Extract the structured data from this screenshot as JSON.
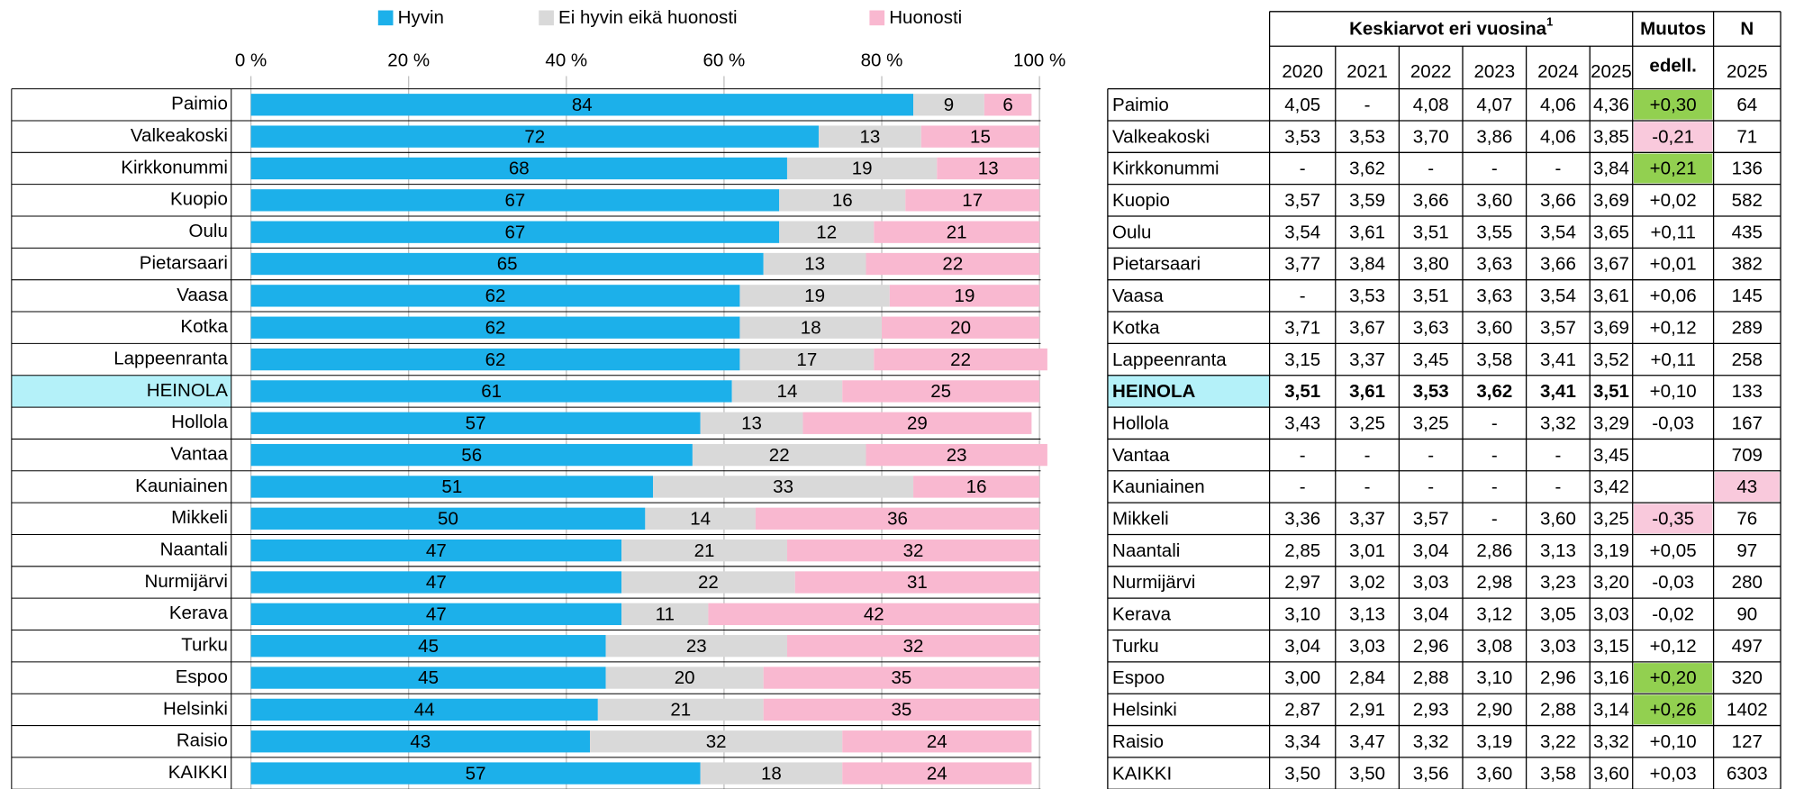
{
  "chart_data": {
    "type": "bar",
    "orientation": "horizontal",
    "stacked": true,
    "categories": [
      "Paimio",
      "Valkeakoski",
      "Kirkkonummi",
      "Kuopio",
      "Oulu",
      "Pietarsaari",
      "Vaasa",
      "Kotka",
      "Lappeenranta",
      "HEINOLA",
      "Hollola",
      "Vantaa",
      "Kauniainen",
      "Mikkeli",
      "Naantali",
      "Nurmijärvi",
      "Kerava",
      "Turku",
      "Espoo",
      "Helsinki",
      "Raisio",
      "KAIKKI"
    ],
    "series": [
      {
        "name": "Hyvin",
        "color": "#1cb0ea",
        "values": [
          84,
          72,
          68,
          67,
          67,
          65,
          62,
          62,
          62,
          61,
          57,
          56,
          51,
          50,
          47,
          47,
          47,
          45,
          45,
          44,
          43,
          57
        ]
      },
      {
        "name": "Ei hyvin eikä huonosti",
        "color": "#d9d9d9",
        "values": [
          9,
          13,
          19,
          16,
          12,
          13,
          19,
          18,
          17,
          14,
          13,
          22,
          33,
          14,
          21,
          22,
          11,
          23,
          20,
          21,
          32,
          18
        ]
      },
      {
        "name": "Huonosti",
        "color": "#f9b8d0",
        "values": [
          6,
          15,
          13,
          17,
          21,
          22,
          19,
          20,
          22,
          25,
          29,
          23,
          16,
          36,
          32,
          31,
          42,
          32,
          35,
          35,
          24,
          24
        ]
      }
    ],
    "xlim": [
      0,
      100
    ],
    "xticks": [
      {
        "value": 0,
        "label": "0 %"
      },
      {
        "value": 20,
        "label": "20 %"
      },
      {
        "value": 40,
        "label": "40 %"
      },
      {
        "value": 60,
        "label": "60 %"
      },
      {
        "value": 80,
        "label": "80 %"
      },
      {
        "value": 100,
        "label": "100 %"
      }
    ],
    "grid": true,
    "legend": "top",
    "highlight": 9,
    "highlight_color": "#b4f1f9"
  },
  "table": {
    "header": {
      "group": "Keskiarvot eri vuosina",
      "footnote": "1",
      "change": "Muutos",
      "change_sub": "edell.",
      "n": "N",
      "n_sub": "2025",
      "years": [
        "2020",
        "2021",
        "2022",
        "2023",
        "2024",
        "2025"
      ]
    },
    "rows": [
      {
        "cells": [
          "Paimio",
          "4,05",
          "-",
          "4,08",
          "4,07",
          "4,06",
          "4,36",
          "+0,30",
          "64"
        ],
        "change_fill": "#92d050"
      },
      {
        "cells": [
          "Valkeakoski",
          "3,53",
          "3,53",
          "3,70",
          "3,86",
          "4,06",
          "3,85",
          "-0,21",
          "71"
        ],
        "change_fill": "#f9c9dc"
      },
      {
        "cells": [
          "Kirkkonummi",
          "-",
          "3,62",
          "-",
          "-",
          "-",
          "3,84",
          "+0,21",
          "136"
        ],
        "change_fill": "#92d050"
      },
      {
        "cells": [
          "Kuopio",
          "3,57",
          "3,59",
          "3,66",
          "3,60",
          "3,66",
          "3,69",
          "+0,02",
          "582"
        ]
      },
      {
        "cells": [
          "Oulu",
          "3,54",
          "3,61",
          "3,51",
          "3,55",
          "3,54",
          "3,65",
          "+0,11",
          "435"
        ]
      },
      {
        "cells": [
          "Pietarsaari",
          "3,77",
          "3,84",
          "3,80",
          "3,63",
          "3,66",
          "3,67",
          "+0,01",
          "382"
        ]
      },
      {
        "cells": [
          "Vaasa",
          "-",
          "3,53",
          "3,51",
          "3,63",
          "3,54",
          "3,61",
          "+0,06",
          "145"
        ]
      },
      {
        "cells": [
          "Kotka",
          "3,71",
          "3,67",
          "3,63",
          "3,60",
          "3,57",
          "3,69",
          "+0,12",
          "289"
        ]
      },
      {
        "cells": [
          "Lappeenranta",
          "3,15",
          "3,37",
          "3,45",
          "3,58",
          "3,41",
          "3,52",
          "+0,11",
          "258"
        ]
      },
      {
        "cells": [
          "HEINOLA",
          "3,51",
          "3,61",
          "3,53",
          "3,62",
          "3,41",
          "3,51",
          "+0,10",
          "133"
        ],
        "bold": true
      },
      {
        "cells": [
          "Hollola",
          "3,43",
          "3,25",
          "3,25",
          "-",
          "3,32",
          "3,29",
          "-0,03",
          "167"
        ]
      },
      {
        "cells": [
          "Vantaa",
          "-",
          "-",
          "-",
          "-",
          "-",
          "3,45",
          null,
          "709"
        ]
      },
      {
        "cells": [
          "Kauniainen",
          "-",
          "-",
          "-",
          "-",
          "-",
          "3,42",
          null,
          "43"
        ],
        "n_fill": "#f9c9dc",
        "n_color": "#e0202a"
      },
      {
        "cells": [
          "Mikkeli",
          "3,36",
          "3,37",
          "3,57",
          "-",
          "3,60",
          "3,25",
          "-0,35",
          "76"
        ],
        "change_fill": "#f9c9dc"
      },
      {
        "cells": [
          "Naantali",
          "2,85",
          "3,01",
          "3,04",
          "2,86",
          "3,13",
          "3,19",
          "+0,05",
          "97"
        ]
      },
      {
        "cells": [
          "Nurmijärvi",
          "2,97",
          "3,02",
          "3,03",
          "2,98",
          "3,23",
          "3,20",
          "-0,03",
          "280"
        ]
      },
      {
        "cells": [
          "Kerava",
          "3,10",
          "3,13",
          "3,04",
          "3,12",
          "3,05",
          "3,03",
          "-0,02",
          "90"
        ]
      },
      {
        "cells": [
          "Turku",
          "3,04",
          "3,03",
          "2,96",
          "3,08",
          "3,03",
          "3,15",
          "+0,12",
          "497"
        ]
      },
      {
        "cells": [
          "Espoo",
          "3,00",
          "2,84",
          "2,88",
          "3,10",
          "2,96",
          "3,16",
          "+0,20",
          "320"
        ],
        "change_fill": "#92d050"
      },
      {
        "cells": [
          "Helsinki",
          "2,87",
          "2,91",
          "2,93",
          "2,90",
          "2,88",
          "3,14",
          "+0,26",
          "1402"
        ],
        "change_fill": "#92d050"
      },
      {
        "cells": [
          "Raisio",
          "3,34",
          "3,47",
          "3,32",
          "3,19",
          "3,22",
          "3,32",
          "+0,10",
          "127"
        ]
      },
      {
        "cells": [
          "KAIKKI",
          "3,50",
          "3,50",
          "3,56",
          "3,60",
          "3,58",
          "3,60",
          "+0,03",
          "6303"
        ]
      }
    ]
  }
}
